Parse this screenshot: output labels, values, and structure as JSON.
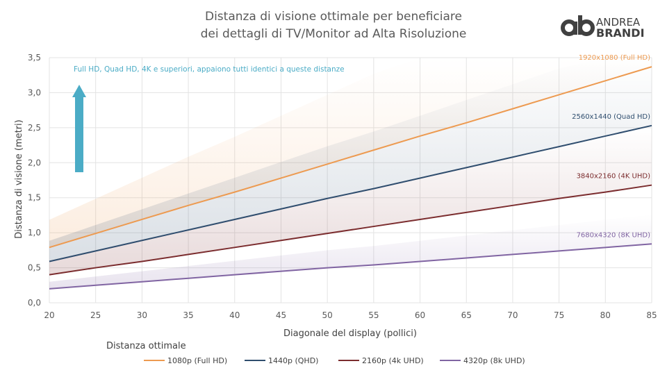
{
  "title_lines": [
    "Distanza di visione ottimale per beneficiare",
    "dei dettagli di TV/Monitor ad Alta Risoluzione"
  ],
  "logo": {
    "line1": "ANDREA",
    "line2": "BRANDI",
    "mark": "ab"
  },
  "annotation": "Full HD, Quad HD, 4K e superiori, appaiono tutti identici a queste distanze",
  "legend_title": "Distanza ottimale",
  "chart_data": {
    "type": "line",
    "xlabel": "Diagonale del display (pollici)",
    "ylabel": "Distanza di visione (metri)",
    "xlim": [
      20,
      85
    ],
    "ylim": [
      0,
      3.5
    ],
    "xticks": [
      "20",
      "25",
      "30",
      "35",
      "40",
      "45",
      "50",
      "55",
      "60",
      "65",
      "70",
      "75",
      "80",
      "85"
    ],
    "yticks": [
      "0,0",
      "0,5",
      "1,0",
      "1,5",
      "2,0",
      "2,5",
      "3,0",
      "3,5"
    ],
    "grid": true,
    "legend_placement": "bottom",
    "x": [
      20,
      25,
      30,
      35,
      40,
      45,
      50,
      55,
      60,
      65,
      70,
      75,
      80,
      85
    ],
    "series": [
      {
        "name": "1080p (Full HD)",
        "end_label": "1920x1080 (Full HD)",
        "color": "#ED9A50",
        "values": [
          0.79,
          0.99,
          1.19,
          1.39,
          1.58,
          1.78,
          1.98,
          2.18,
          2.38,
          2.57,
          2.77,
          2.97,
          3.17,
          3.37
        ]
      },
      {
        "name": "1440p (QHD)",
        "end_label": "2560x1440 (Quad HD)",
        "color": "#2F4D6E",
        "values": [
          0.59,
          0.74,
          0.89,
          1.04,
          1.19,
          1.34,
          1.49,
          1.63,
          1.78,
          1.93,
          2.08,
          2.23,
          2.38,
          2.53
        ]
      },
      {
        "name": "2160p (4k UHD)",
        "end_label": "3840x2160 (4K UHD)",
        "color": "#7B2C2E",
        "values": [
          0.4,
          0.5,
          0.59,
          0.69,
          0.79,
          0.89,
          0.99,
          1.09,
          1.19,
          1.29,
          1.39,
          1.49,
          1.58,
          1.68
        ]
      },
      {
        "name": "4320p (8k UHD)",
        "end_label": "7680x4320 (8K UHD)",
        "color": "#8064A2",
        "values": [
          0.2,
          0.25,
          0.3,
          0.35,
          0.4,
          0.45,
          0.5,
          0.54,
          0.59,
          0.64,
          0.69,
          0.74,
          0.79,
          0.84
        ]
      }
    ],
    "arrow_color": "#4BACC6"
  }
}
